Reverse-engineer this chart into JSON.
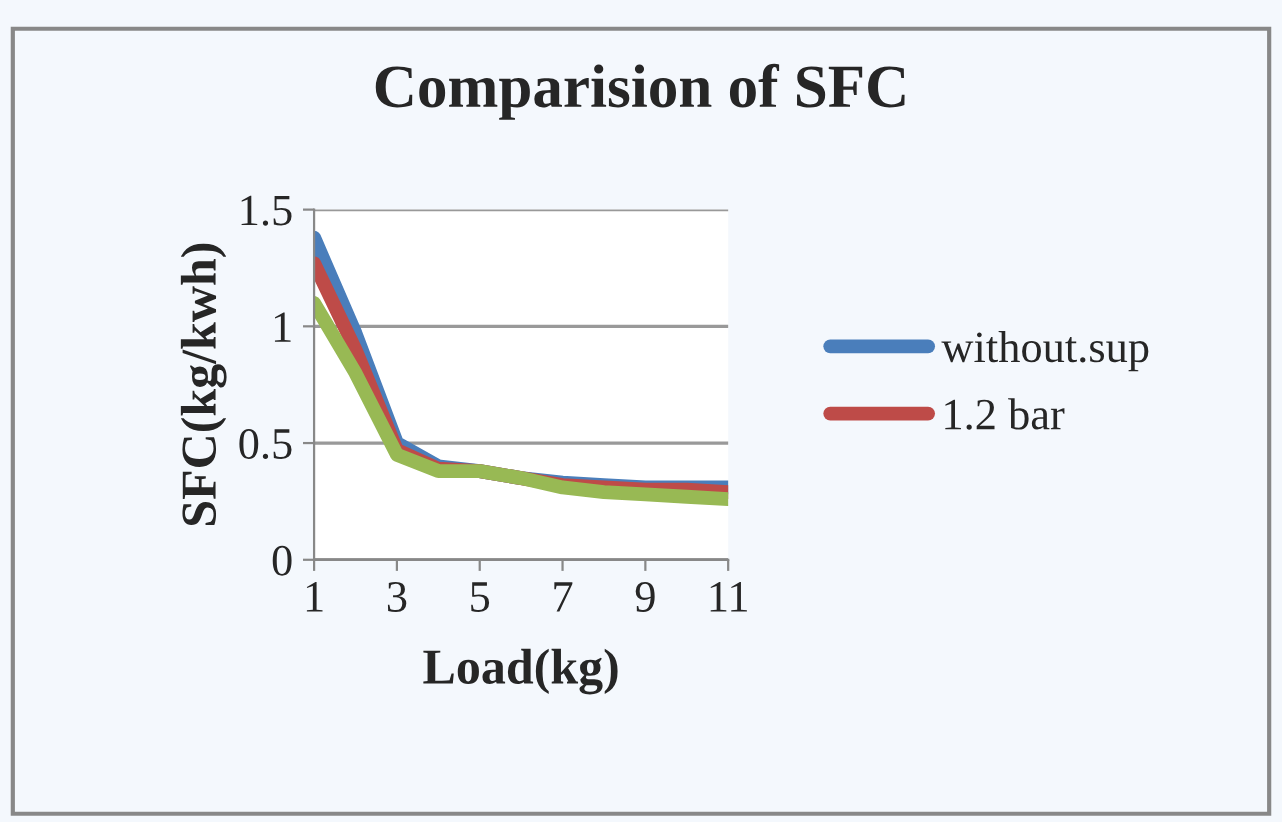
{
  "chart_data": {
    "type": "line",
    "title": "Comparision of SFC",
    "xlabel": "Load(kg)",
    "ylabel": "SFC(kg/kwh)",
    "x": [
      1,
      2,
      3,
      4,
      5,
      6,
      7,
      8,
      9,
      10,
      11
    ],
    "series": [
      {
        "name": "without.sup",
        "color": "#4a7ebb",
        "values": [
          1.38,
          0.97,
          0.5,
          0.4,
          0.38,
          0.35,
          0.33,
          0.32,
          0.31,
          0.31,
          0.31
        ]
      },
      {
        "name": "1.2 bar",
        "color": "#be4b48",
        "values": [
          1.27,
          0.9,
          0.47,
          0.39,
          0.38,
          0.35,
          0.32,
          0.31,
          0.3,
          0.3,
          0.29
        ]
      },
      {
        "color": "#98b954",
        "values": [
          1.1,
          0.8,
          0.45,
          0.38,
          0.38,
          0.35,
          0.31,
          0.29,
          0.28,
          0.27,
          0.26
        ]
      }
    ],
    "xlim": [
      1,
      11
    ],
    "xticks": [
      1,
      3,
      5,
      7,
      9,
      11
    ],
    "ylim": [
      0,
      1.5
    ],
    "yticks": [
      0,
      0.5,
      1,
      1.5
    ],
    "grid": "y",
    "legend": "right",
    "marker": "none",
    "line_style": "solid"
  }
}
